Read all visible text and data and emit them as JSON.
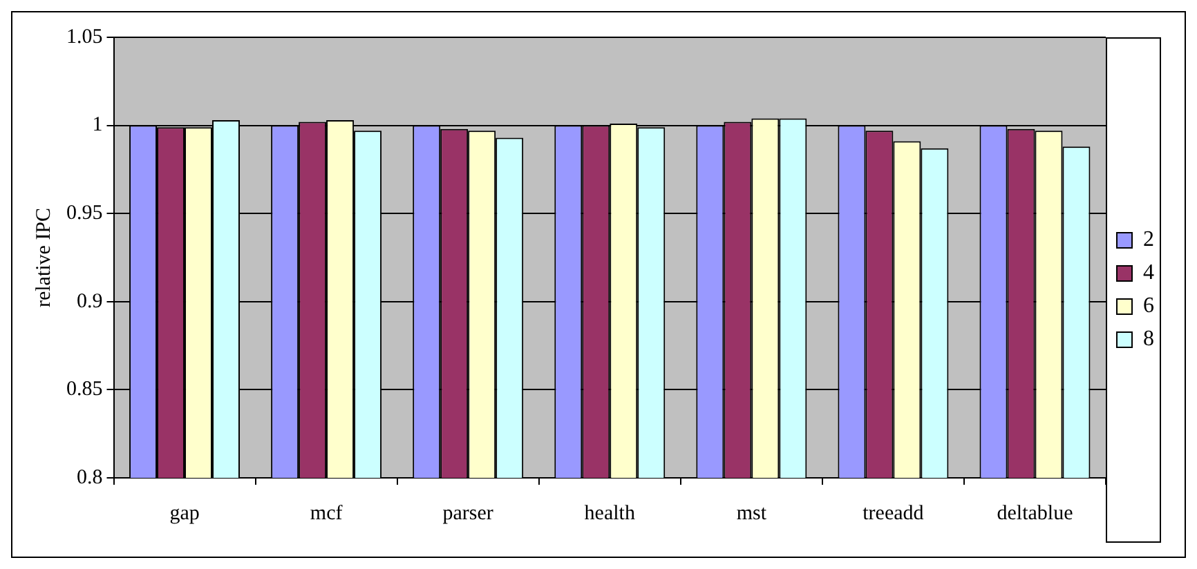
{
  "chart_data": {
    "type": "bar",
    "ylabel": "relative IPC",
    "categories": [
      "gap",
      "mcf",
      "parser",
      "health",
      "mst",
      "treeadd",
      "deltablue"
    ],
    "series": [
      {
        "name": "2",
        "color": "#9999ff",
        "values": [
          1,
          1,
          1,
          1,
          1,
          1,
          1
        ]
      },
      {
        "name": "4",
        "color": "#993366",
        "values": [
          0.999,
          1.002,
          0.998,
          1,
          1.002,
          0.997,
          0.998
        ]
      },
      {
        "name": "6",
        "color": "#ffffcc",
        "values": [
          0.999,
          1.003,
          0.997,
          1.001,
          1.004,
          0.991,
          0.997
        ]
      },
      {
        "name": "8",
        "color": "#ccffff",
        "values": [
          1.003,
          0.997,
          0.993,
          0.999,
          1.004,
          0.987,
          0.988
        ]
      }
    ],
    "ylim": [
      0.8,
      1.05
    ],
    "yticks": [
      0.8,
      0.85,
      0.9,
      0.95,
      1,
      1.05
    ],
    "grid": "y",
    "legend": "right"
  }
}
